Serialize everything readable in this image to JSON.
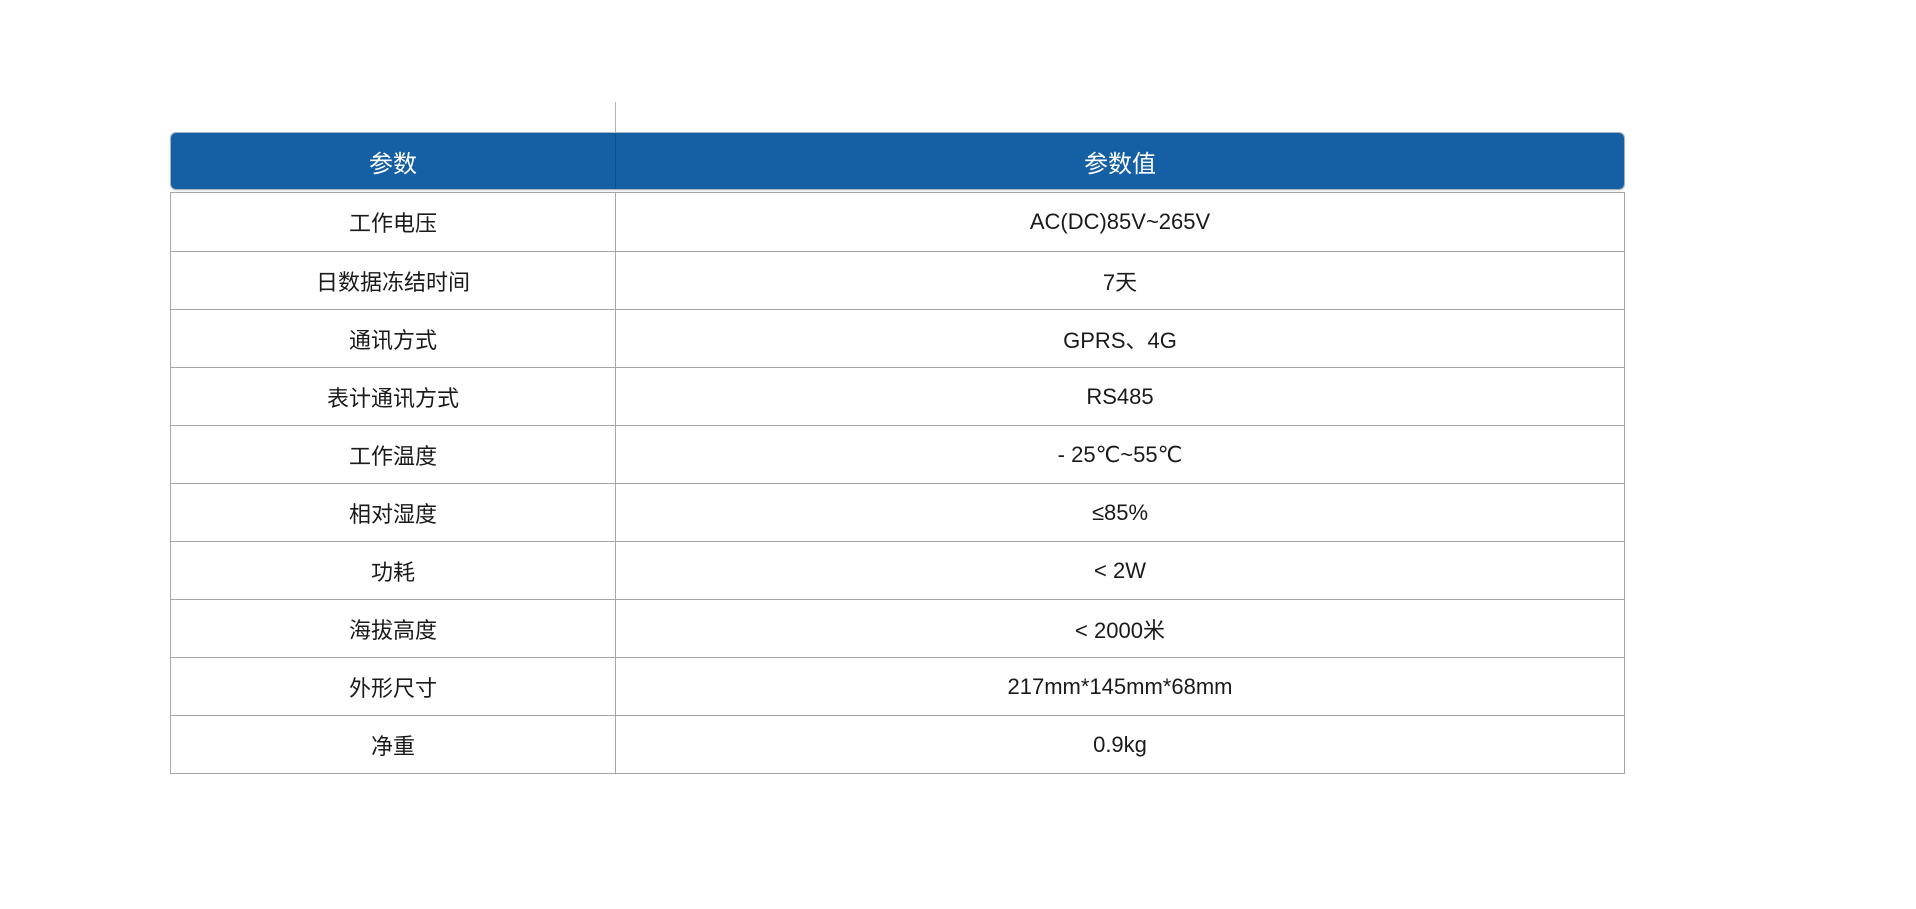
{
  "table": {
    "headers": {
      "param": "参数",
      "value": "参数值"
    },
    "rows": [
      {
        "param": "工作电压",
        "value": "AC(DC)85V~265V"
      },
      {
        "param": "日数据冻结时间",
        "value": "7天"
      },
      {
        "param": "通讯方式",
        "value": "GPRS、4G"
      },
      {
        "param": "表计通讯方式",
        "value": "RS485"
      },
      {
        "param": "工作温度",
        "value": "- 25℃~55℃"
      },
      {
        "param": "相对湿度",
        "value": "≤85%"
      },
      {
        "param": "功耗",
        "value": "< 2W"
      },
      {
        "param": "海拔高度",
        "value": "< 2000米"
      },
      {
        "param": "外形尺寸",
        "value": "217mm*145mm*68mm"
      },
      {
        "param": "净重",
        "value": "0.9kg"
      }
    ],
    "colors": {
      "header_bg": "#1560A4",
      "header_text": "#ffffff",
      "grid": "#a6a6a6",
      "body_text": "#1a1a1a"
    }
  }
}
